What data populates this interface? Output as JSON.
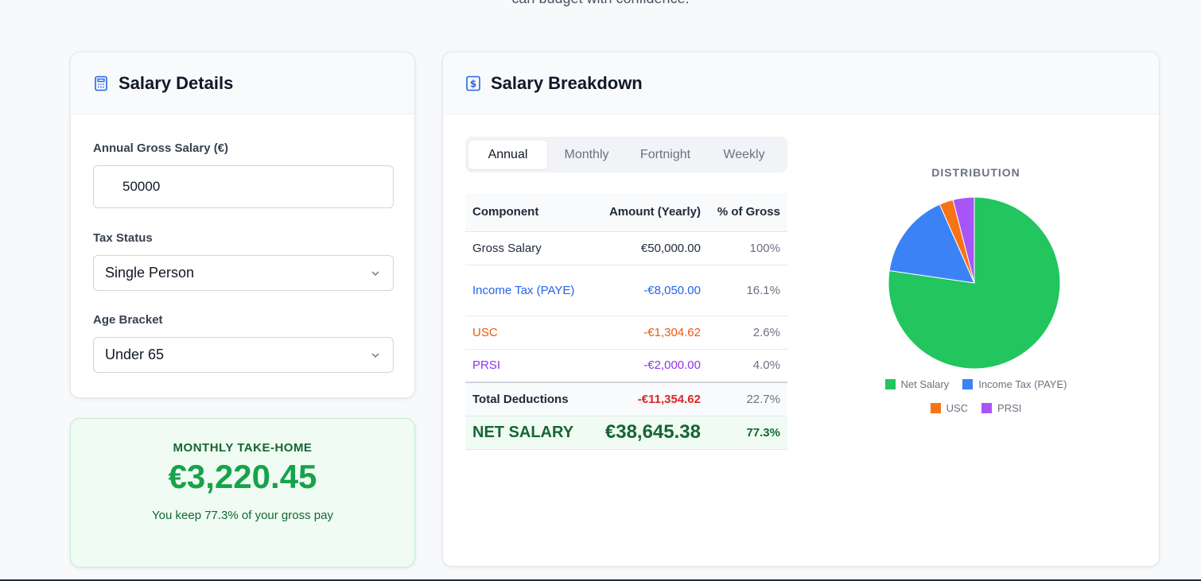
{
  "page": {
    "intro_fragment": "can budget with confidence."
  },
  "details": {
    "title": "Salary Details",
    "gross_label": "Annual Gross Salary (€)",
    "gross_value": "50000",
    "tax_status_label": "Tax Status",
    "tax_status_value": "Single Person",
    "age_label": "Age Bracket",
    "age_value": "Under 65"
  },
  "takehome": {
    "label": "MONTHLY TAKE-HOME",
    "amount": "€3,220.45",
    "note": "You keep 77.3% of your gross pay"
  },
  "breakdown": {
    "title": "Salary Breakdown",
    "tabs": [
      "Annual",
      "Monthly",
      "Fortnight",
      "Weekly"
    ],
    "active_tab": "Annual",
    "columns": [
      "Component",
      "Amount (Yearly)",
      "% of Gross"
    ],
    "rows": [
      {
        "component": "Gross Salary",
        "amount": "€50,000.00",
        "pct": "100%"
      },
      {
        "component": "Income Tax (PAYE)",
        "amount": "-€8,050.00",
        "pct": "16.1%"
      },
      {
        "component": "USC",
        "amount": "-€1,304.62",
        "pct": "2.6%"
      },
      {
        "component": "PRSI",
        "amount": "-€2,000.00",
        "pct": "4.0%"
      }
    ],
    "total": {
      "component": "Total Deductions",
      "amount": "-€11,354.62",
      "pct": "22.7%"
    },
    "net": {
      "component": "NET SALARY",
      "amount": "€38,645.38",
      "pct": "77.3%"
    }
  },
  "colors": {
    "net": "#22c55e",
    "tax": "#3b82f6",
    "usc": "#f97316",
    "prsi": "#a855f7"
  },
  "chart_data": {
    "type": "pie",
    "title": "DISTRIBUTION",
    "categories": [
      "Net Salary",
      "Income Tax (PAYE)",
      "USC",
      "PRSI"
    ],
    "values": [
      38645.38,
      8050.0,
      1304.62,
      2000.0
    ],
    "colors": [
      "#22c55e",
      "#3b82f6",
      "#f97316",
      "#a855f7"
    ],
    "legend": "bottom"
  }
}
